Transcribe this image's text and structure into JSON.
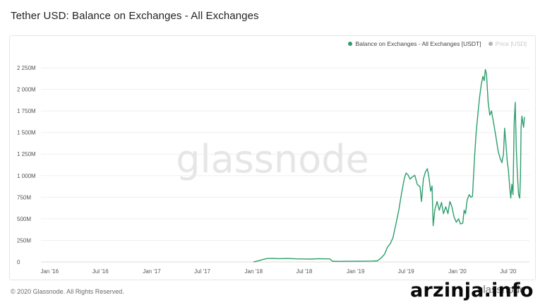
{
  "header": {
    "title": "Tether USD: Balance on Exchanges - All Exchanges"
  },
  "legend": {
    "items": [
      {
        "label": "Balance on Exchanges - All Exchanges [USDT]",
        "color": "#2d9e6c",
        "active": true
      },
      {
        "label": "Price [USD]",
        "color": "#b5b5b5",
        "active": false
      }
    ]
  },
  "watermark": "glassnode",
  "footer": {
    "copyright": "© 2020 Glassnode. All Rights Reserved.",
    "logo_text": "glassnode"
  },
  "overlay_stamp": "arzinja.info",
  "colors": {
    "series": "#2d9e6c",
    "grid": "#efefef",
    "axis_text": "#555555",
    "watermark": "#e6e6e6"
  },
  "chart_data": {
    "type": "line",
    "title": "Tether USD: Balance on Exchanges - All Exchanges",
    "xlabel": "",
    "ylabel": "",
    "x_range": [
      "2015-12-01",
      "2020-09-15"
    ],
    "ylim": [
      0,
      2250
    ],
    "y_unit": "M",
    "y_ticks": [
      {
        "value": 0,
        "label": "0"
      },
      {
        "value": 250,
        "label": "250M"
      },
      {
        "value": 500,
        "label": "500M"
      },
      {
        "value": 750,
        "label": "750M"
      },
      {
        "value": 1000,
        "label": "1 000M"
      },
      {
        "value": 1250,
        "label": "1 250M"
      },
      {
        "value": 1500,
        "label": "1 500M"
      },
      {
        "value": 1750,
        "label": "1 750M"
      },
      {
        "value": 2000,
        "label": "2 000M"
      },
      {
        "value": 2250,
        "label": "2 250M"
      }
    ],
    "x_ticks": [
      {
        "date": "2016-01-01",
        "label": "Jan '16"
      },
      {
        "date": "2016-07-01",
        "label": "Jul '16"
      },
      {
        "date": "2017-01-01",
        "label": "Jan '17"
      },
      {
        "date": "2017-07-01",
        "label": "Jul '17"
      },
      {
        "date": "2018-01-01",
        "label": "Jan '18"
      },
      {
        "date": "2018-07-01",
        "label": "Jul '18"
      },
      {
        "date": "2019-01-01",
        "label": "Jan '19"
      },
      {
        "date": "2019-07-01",
        "label": "Jul '19"
      },
      {
        "date": "2020-01-01",
        "label": "Jan '20"
      },
      {
        "date": "2020-07-01",
        "label": "Jul '20"
      }
    ],
    "grid": true,
    "legend_position": "top-right",
    "series": [
      {
        "name": "Balance on Exchanges - All Exchanges [USDT]",
        "color": "#2d9e6c",
        "points": [
          [
            "2017-12-31",
            0
          ],
          [
            "2018-01-20",
            15
          ],
          [
            "2018-02-05",
            30
          ],
          [
            "2018-02-20",
            40
          ],
          [
            "2018-03-10",
            42
          ],
          [
            "2018-04-01",
            38
          ],
          [
            "2018-05-01",
            40
          ],
          [
            "2018-06-01",
            36
          ],
          [
            "2018-07-01",
            34
          ],
          [
            "2018-07-25",
            33
          ],
          [
            "2018-08-20",
            38
          ],
          [
            "2018-09-10",
            36
          ],
          [
            "2018-10-01",
            35
          ],
          [
            "2018-10-10",
            8
          ],
          [
            "2018-11-01",
            6
          ],
          [
            "2018-12-01",
            7
          ],
          [
            "2019-01-01",
            7
          ],
          [
            "2019-02-01",
            9
          ],
          [
            "2019-03-01",
            10
          ],
          [
            "2019-03-20",
            12
          ],
          [
            "2019-04-01",
            40
          ],
          [
            "2019-04-15",
            90
          ],
          [
            "2019-04-25",
            170
          ],
          [
            "2019-05-05",
            210
          ],
          [
            "2019-05-15",
            280
          ],
          [
            "2019-05-25",
            430
          ],
          [
            "2019-06-05",
            600
          ],
          [
            "2019-06-15",
            800
          ],
          [
            "2019-06-25",
            970
          ],
          [
            "2019-07-01",
            1030
          ],
          [
            "2019-07-08",
            1010
          ],
          [
            "2019-07-15",
            960
          ],
          [
            "2019-07-22",
            980
          ],
          [
            "2019-08-01",
            1005
          ],
          [
            "2019-08-10",
            900
          ],
          [
            "2019-08-20",
            870
          ],
          [
            "2019-08-25",
            700
          ],
          [
            "2019-09-01",
            960
          ],
          [
            "2019-09-08",
            1040
          ],
          [
            "2019-09-15",
            1080
          ],
          [
            "2019-09-20",
            1000
          ],
          [
            "2019-09-27",
            820
          ],
          [
            "2019-10-02",
            880
          ],
          [
            "2019-10-06",
            420
          ],
          [
            "2019-10-12",
            600
          ],
          [
            "2019-10-20",
            700
          ],
          [
            "2019-10-28",
            600
          ],
          [
            "2019-11-05",
            690
          ],
          [
            "2019-11-12",
            560
          ],
          [
            "2019-11-20",
            640
          ],
          [
            "2019-11-28",
            560
          ],
          [
            "2019-12-05",
            700
          ],
          [
            "2019-12-12",
            640
          ],
          [
            "2019-12-20",
            520
          ],
          [
            "2019-12-28",
            460
          ],
          [
            "2020-01-05",
            500
          ],
          [
            "2020-01-12",
            440
          ],
          [
            "2020-01-20",
            450
          ],
          [
            "2020-01-25",
            600
          ],
          [
            "2020-01-30",
            560
          ],
          [
            "2020-02-05",
            720
          ],
          [
            "2020-02-12",
            780
          ],
          [
            "2020-02-18",
            750
          ],
          [
            "2020-02-24",
            760
          ],
          [
            "2020-03-02",
            1200
          ],
          [
            "2020-03-08",
            1500
          ],
          [
            "2020-03-14",
            1700
          ],
          [
            "2020-03-20",
            1900
          ],
          [
            "2020-03-26",
            2050
          ],
          [
            "2020-04-01",
            2150
          ],
          [
            "2020-04-06",
            2100
          ],
          [
            "2020-04-10",
            2230
          ],
          [
            "2020-04-14",
            2180
          ],
          [
            "2020-04-20",
            1850
          ],
          [
            "2020-04-26",
            1700
          ],
          [
            "2020-05-02",
            1750
          ],
          [
            "2020-05-10",
            1600
          ],
          [
            "2020-05-18",
            1450
          ],
          [
            "2020-05-26",
            1280
          ],
          [
            "2020-06-02",
            1200
          ],
          [
            "2020-06-08",
            1150
          ],
          [
            "2020-06-14",
            1250
          ],
          [
            "2020-06-18",
            1550
          ],
          [
            "2020-06-22",
            1400
          ],
          [
            "2020-06-27",
            1180
          ],
          [
            "2020-07-02",
            1050
          ],
          [
            "2020-07-06",
            880
          ],
          [
            "2020-07-10",
            740
          ],
          [
            "2020-07-14",
            900
          ],
          [
            "2020-07-18",
            780
          ],
          [
            "2020-07-22",
            1600
          ],
          [
            "2020-07-26",
            1850
          ],
          [
            "2020-07-30",
            1300
          ],
          [
            "2020-08-03",
            1000
          ],
          [
            "2020-08-07",
            780
          ],
          [
            "2020-08-11",
            740
          ],
          [
            "2020-08-14",
            1000
          ],
          [
            "2020-08-16",
            1550
          ],
          [
            "2020-08-19",
            1690
          ],
          [
            "2020-08-22",
            1620
          ],
          [
            "2020-08-25",
            1560
          ],
          [
            "2020-08-28",
            1680
          ]
        ]
      }
    ]
  }
}
